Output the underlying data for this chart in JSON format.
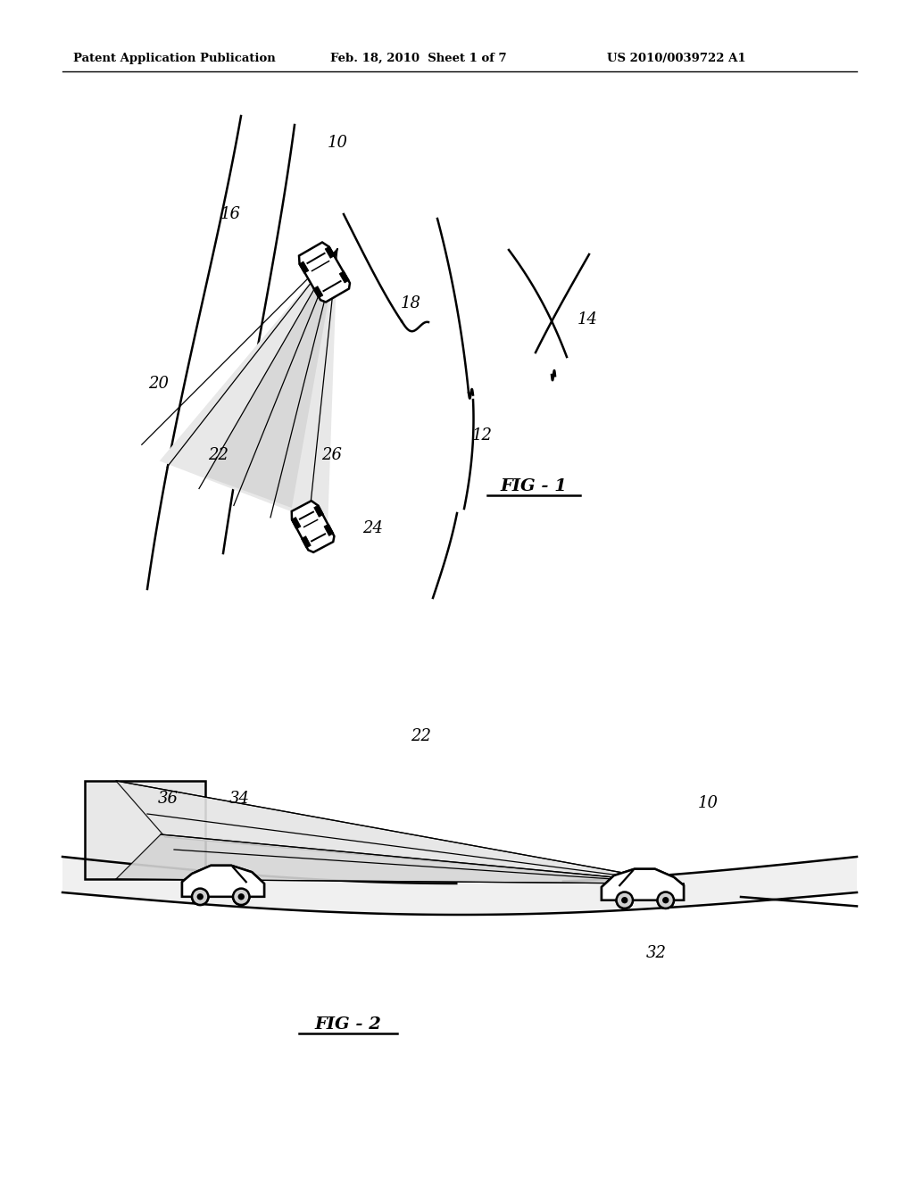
{
  "bg_color": "#ffffff",
  "lc": "#000000",
  "header_left": "Patent Application Publication",
  "header_mid": "Feb. 18, 2010  Sheet 1 of 7",
  "header_right": "US 2010/0039722 A1",
  "fig1_label": "FIG - 1",
  "fig2_label": "FIG - 2",
  "header_fontsize": 9.5,
  "label_fontsize": 13,
  "fig_label_fontsize": 14
}
